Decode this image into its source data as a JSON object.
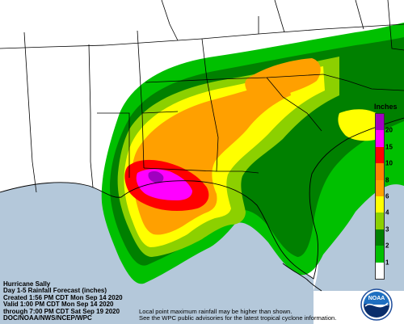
{
  "legend": {
    "title": "Inches",
    "ticks": [
      "20",
      "15",
      "10",
      "8",
      "6",
      "4",
      "3",
      "2",
      "1"
    ],
    "colors": [
      "#ffffff",
      "#00c000",
      "#008000",
      "#8cd000",
      "#ffff00",
      "#ffa000",
      "#ff8000",
      "#ff0000",
      "#ff00ff",
      "#a000c0"
    ]
  },
  "info": {
    "lines": [
      "Hurricane Sally",
      "Day 1-5 Rainfall Forecast (inches)",
      "Created 1:56 PM CDT Mon Sep 14 2020",
      "Valid 1:00 PM CDT Mon Sep 14 2020",
      "through 7:00 PM CDT Sat Sep 19 2020",
      "DOC/NOAA/NWS/NCEP/WPC"
    ]
  },
  "note": {
    "lines": [
      "Local point maximum rainfall may be higher than shown.",
      "See the WPC public advisories for the latest tropical cyclone information."
    ]
  },
  "logo": {
    "text": "NOAA"
  },
  "colors": {
    "land": "#ffffff",
    "water": "#b4c8da",
    "border": "#000000"
  }
}
